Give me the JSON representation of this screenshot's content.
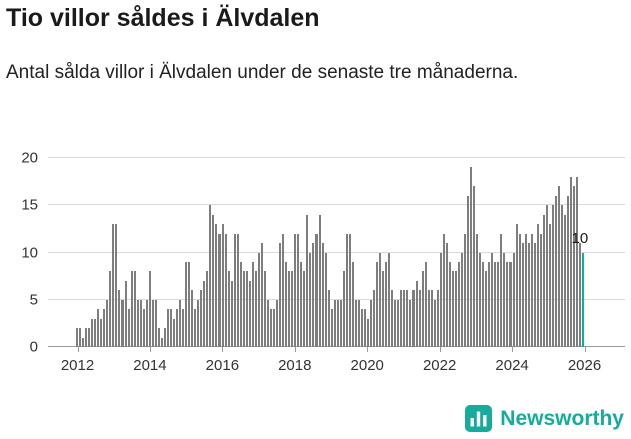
{
  "header": {
    "title": "Tio villor såldes i Älvdalen",
    "subtitle": "Antal sålda villor i Älvdalen under de senaste tre månaderna."
  },
  "footer": {
    "brand_name": "Newsworthy",
    "logo_icon": "bar-chart-icon"
  },
  "colors": {
    "bar": "#7e7e7e",
    "accent": "#00b2ad",
    "brand": "#16ab9c",
    "grid": "#d9d9d9",
    "baseline": "#9a9a9a",
    "text": "#1a1a1a",
    "axis_text": "#333333"
  },
  "chart_data": {
    "type": "bar",
    "title": "Tio villor såldes i Älvdalen",
    "subtitle": "Antal sålda villor i Älvdalen under de senaste tre månaderna.",
    "xlabel": "",
    "ylabel": "",
    "ylim": [
      0,
      20
    ],
    "yticks": [
      0,
      5,
      10,
      15,
      20
    ],
    "grid": true,
    "legend": "none",
    "x_interval": "monthly",
    "x_start_year": 2012,
    "x_tick_labels": [
      2012,
      2014,
      2016,
      2018,
      2020,
      2022,
      2024,
      2026
    ],
    "highlight_index": 167,
    "highlight_label": "10",
    "values": [
      2,
      2,
      1,
      2,
      2,
      3,
      3,
      4,
      3,
      4,
      5,
      8,
      13,
      13,
      6,
      5,
      7,
      4,
      8,
      8,
      5,
      5,
      4,
      5,
      8,
      5,
      5,
      2,
      1,
      2,
      4,
      4,
      3,
      4,
      5,
      4,
      9,
      9,
      6,
      4,
      5,
      6,
      7,
      8,
      15,
      14,
      13,
      12,
      13,
      12,
      8,
      7,
      12,
      12,
      9,
      8,
      8,
      7,
      9,
      8,
      10,
      11,
      8,
      5,
      4,
      4,
      5,
      11,
      12,
      9,
      8,
      8,
      12,
      12,
      9,
      8,
      14,
      10,
      11,
      12,
      14,
      11,
      10,
      6,
      4,
      5,
      5,
      5,
      8,
      12,
      12,
      9,
      5,
      5,
      4,
      4,
      3,
      5,
      6,
      9,
      10,
      8,
      9,
      10,
      6,
      5,
      5,
      6,
      6,
      6,
      5,
      6,
      7,
      6,
      8,
      9,
      6,
      6,
      5,
      6,
      10,
      12,
      11,
      9,
      8,
      8,
      9,
      10,
      12,
      16,
      19,
      17,
      12,
      10,
      9,
      8,
      9,
      10,
      9,
      9,
      12,
      10,
      9,
      9,
      10,
      13,
      12,
      11,
      12,
      11,
      12,
      11,
      13,
      12,
      14,
      15,
      13,
      15,
      16,
      17,
      15,
      14,
      16,
      18,
      17,
      18,
      11,
      10
    ]
  }
}
